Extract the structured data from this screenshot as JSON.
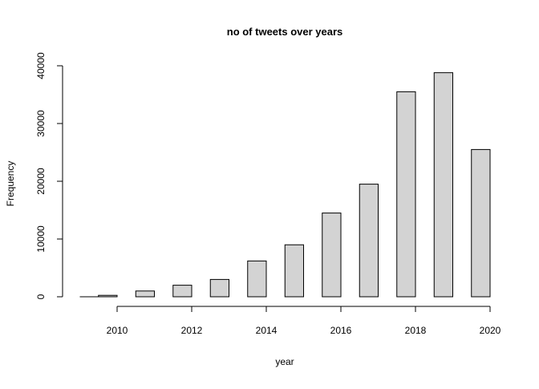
{
  "chart_data": {
    "type": "bar",
    "title": "no of tweets over years",
    "xlabel": "year",
    "ylabel": "Frequency",
    "x_ticks": [
      2010,
      2012,
      2014,
      2016,
      2018,
      2020
    ],
    "y_ticks": [
      0,
      10000,
      20000,
      30000,
      40000
    ],
    "xlim": [
      2009,
      2020
    ],
    "ylim": [
      0,
      40000
    ],
    "bar_width_years": 0.5,
    "grid": false,
    "legend": "none",
    "bar_fill": "#d3d3d3",
    "bar_stroke": "#000000",
    "bars": [
      {
        "x": 2009.25,
        "value": 0
      },
      {
        "x": 2009.75,
        "value": 250
      },
      {
        "x": 2010.75,
        "value": 1000
      },
      {
        "x": 2011.75,
        "value": 2000
      },
      {
        "x": 2012.75,
        "value": 3000
      },
      {
        "x": 2013.75,
        "value": 6200
      },
      {
        "x": 2014.75,
        "value": 9000
      },
      {
        "x": 2015.75,
        "value": 14500
      },
      {
        "x": 2016.75,
        "value": 19500
      },
      {
        "x": 2017.75,
        "value": 35500
      },
      {
        "x": 2018.75,
        "value": 38800
      },
      {
        "x": 2019.75,
        "value": 25500
      }
    ]
  }
}
